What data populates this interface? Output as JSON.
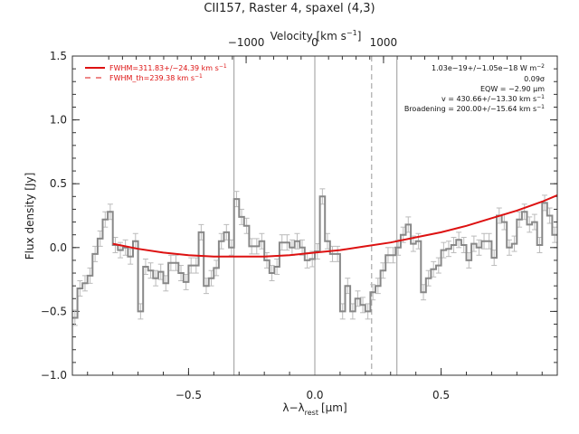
{
  "chart_data": {
    "type": "line",
    "title": "CII157, Raster 4, spaxel (4,3)",
    "xlabel": "λ−λ",
    "xlabel_sub": "rest",
    "xlabel_unit": "[μm]",
    "ylabel": "Flux density [Jy]",
    "top_axis_label": "Velocity [km s",
    "top_axis_label_sup": "−1",
    "top_axis_label_end": "]",
    "xlim": [
      -0.96,
      0.96
    ],
    "ylim": [
      -1.0,
      1.5
    ],
    "x_ticks": [
      -0.5,
      0.0,
      0.5
    ],
    "x_tick_labels": [
      "−0.5",
      "0.0",
      "0.5"
    ],
    "y_ticks": [
      -1.0,
      -0.5,
      0.0,
      0.5,
      1.0,
      1.5
    ],
    "y_tick_labels": [
      "−1.0",
      "−0.5",
      "0.0",
      "0.5",
      "1.0",
      "1.5"
    ],
    "top_ticks": [
      -1000,
      0,
      1000
    ],
    "top_tick_labels": [
      "−1000",
      "0",
      "1000"
    ],
    "top_axis_um_per_kms": 0.000272,
    "grid": false,
    "vertical_lines": [
      {
        "x": -0.32,
        "style": "solid"
      },
      {
        "x": 0.0,
        "style": "solid"
      },
      {
        "x": 0.225,
        "style": "dashed"
      },
      {
        "x": 0.325,
        "style": "solid"
      }
    ],
    "legend": {
      "placement": "top-left",
      "entries": [
        {
          "label": "FWHM=311.83+/−24.39 km s",
          "sup": "−1",
          "style": "solid"
        },
        {
          "label": "FWHM_th=239.38 km s",
          "sup": "−1",
          "style": "dashed"
        }
      ]
    },
    "annotations": [
      {
        "text": "1.03e−19+/−1.05e−18 W m",
        "sup": "−2"
      },
      {
        "text": "0.09σ",
        "sup": ""
      },
      {
        "text": "EQW = −2.90 μm",
        "sup": ""
      },
      {
        "text": "v = 430.66+/−13.30 km s",
        "sup": "−1"
      },
      {
        "text": "Broadening = 200.00+/−15.64 km s",
        "sup": "−1"
      }
    ],
    "series": [
      {
        "style": "step",
        "color": "#888888",
        "x": [
          -0.95,
          -0.93,
          -0.91,
          -0.89,
          -0.87,
          -0.85,
          -0.83,
          -0.81,
          -0.79,
          -0.77,
          -0.75,
          -0.73,
          -0.71,
          -0.69,
          -0.67,
          -0.65,
          -0.63,
          -0.61,
          -0.59,
          -0.57,
          -0.55,
          -0.53,
          -0.51,
          -0.49,
          -0.47,
          -0.45,
          -0.43,
          -0.41,
          -0.39,
          -0.37,
          -0.35,
          -0.33,
          -0.31,
          -0.29,
          -0.27,
          -0.25,
          -0.23,
          -0.21,
          -0.19,
          -0.17,
          -0.15,
          -0.13,
          -0.11,
          -0.09,
          -0.07,
          -0.05,
          -0.03,
          -0.01,
          0.01,
          0.03,
          0.05,
          0.07,
          0.09,
          0.11,
          0.13,
          0.15,
          0.17,
          0.19,
          0.21,
          0.23,
          0.25,
          0.27,
          0.29,
          0.31,
          0.33,
          0.35,
          0.37,
          0.39,
          0.41,
          0.43,
          0.45,
          0.47,
          0.49,
          0.51,
          0.53,
          0.55,
          0.57,
          0.59,
          0.61,
          0.63,
          0.65,
          0.67,
          0.69,
          0.71,
          0.73,
          0.75,
          0.77,
          0.79,
          0.81,
          0.83,
          0.85,
          0.87,
          0.89,
          0.91,
          0.93,
          0.95
        ],
        "y": [
          -0.55,
          -0.32,
          -0.28,
          -0.22,
          -0.05,
          0.07,
          0.22,
          0.28,
          0.02,
          -0.02,
          0.0,
          -0.07,
          0.05,
          -0.5,
          -0.15,
          -0.18,
          -0.24,
          -0.19,
          -0.28,
          -0.12,
          -0.12,
          -0.2,
          -0.27,
          -0.14,
          -0.14,
          0.12,
          -0.3,
          -0.24,
          -0.16,
          0.05,
          0.12,
          0.0,
          0.38,
          0.24,
          0.17,
          0.01,
          0.01,
          0.05,
          -0.1,
          -0.2,
          -0.15,
          0.04,
          0.04,
          0.0,
          0.05,
          0.0,
          -0.1,
          -0.09,
          -0.03,
          0.4,
          0.05,
          -0.05,
          -0.05,
          -0.5,
          -0.3,
          -0.5,
          -0.4,
          -0.45,
          -0.5,
          -0.35,
          -0.3,
          -0.18,
          -0.06,
          -0.06,
          0.0,
          0.1,
          0.18,
          0.03,
          0.05,
          -0.35,
          -0.24,
          -0.17,
          -0.14,
          -0.02,
          -0.01,
          0.02,
          0.06,
          0.02,
          -0.1,
          0.03,
          0.0,
          0.05,
          0.05,
          -0.08,
          0.25,
          0.2,
          0.0,
          0.03,
          0.22,
          0.28,
          0.18,
          0.2,
          0.02,
          0.35,
          0.25,
          0.1
        ],
        "err": 0.06
      },
      {
        "style": "smooth",
        "color": "#dd1111",
        "x": [
          -0.8,
          -0.7,
          -0.6,
          -0.5,
          -0.4,
          -0.3,
          -0.2,
          -0.1,
          0.0,
          0.1,
          0.2,
          0.3,
          0.4,
          0.5,
          0.6,
          0.7,
          0.8,
          0.9,
          0.96
        ],
        "y": [
          0.03,
          -0.01,
          -0.04,
          -0.06,
          -0.07,
          -0.07,
          -0.07,
          -0.06,
          -0.04,
          -0.02,
          0.01,
          0.04,
          0.08,
          0.12,
          0.17,
          0.23,
          0.29,
          0.36,
          0.41
        ]
      }
    ]
  }
}
